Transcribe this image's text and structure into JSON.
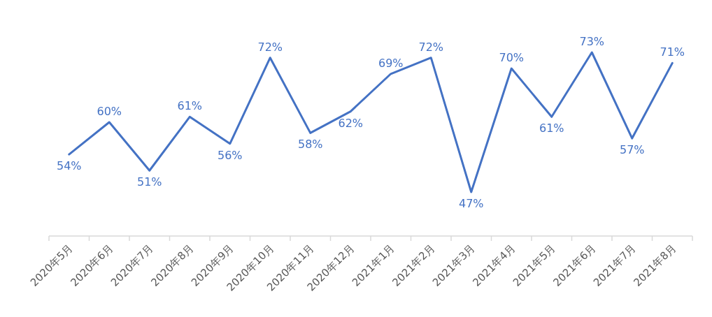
{
  "chart_data": {
    "type": "line",
    "categories": [
      "2020年5月",
      "2020年6月",
      "2020年7月",
      "2020年8月",
      "2020年9月",
      "2020年10月",
      "2020年11月",
      "2020年12月",
      "2021年1月",
      "2021年2月",
      "2021年3月",
      "2021年4月",
      "2021年5月",
      "2021年6月",
      "2021年7月",
      "2021年8月"
    ],
    "series": [
      {
        "color": "#4472c4",
        "values": [
          54,
          60,
          51,
          61,
          56,
          72,
          58,
          62,
          69,
          72,
          47,
          70,
          61,
          73,
          57,
          71
        ],
        "value_labels": [
          "54%",
          "60%",
          "51%",
          "61%",
          "56%",
          "72%",
          "58%",
          "62%",
          "69%",
          "72%",
          "47%",
          "70%",
          "61%",
          "73%",
          "57%",
          "71%"
        ]
      }
    ]
  }
}
